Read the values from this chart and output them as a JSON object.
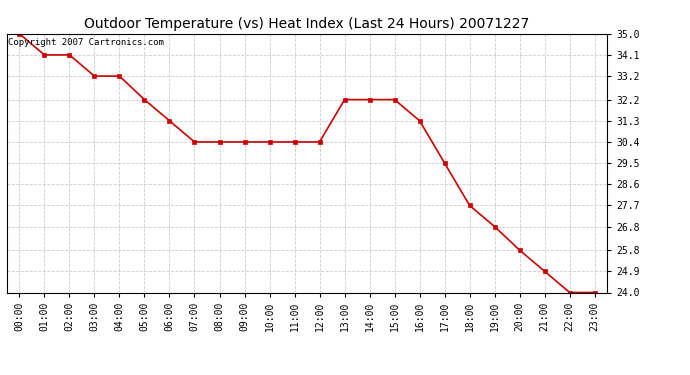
{
  "title": "Outdoor Temperature (vs) Heat Index (Last 24 Hours) 20071227",
  "copyright_text": "Copyright 2007 Cartronics.com",
  "x_labels": [
    "00:00",
    "01:00",
    "02:00",
    "03:00",
    "04:00",
    "05:00",
    "06:00",
    "07:00",
    "08:00",
    "09:00",
    "10:00",
    "11:00",
    "12:00",
    "13:00",
    "14:00",
    "15:00",
    "16:00",
    "17:00",
    "18:00",
    "19:00",
    "20:00",
    "21:00",
    "22:00",
    "23:00"
  ],
  "y_values": [
    35.0,
    34.1,
    34.1,
    33.2,
    33.2,
    32.2,
    31.3,
    30.4,
    30.4,
    30.4,
    30.4,
    30.4,
    30.4,
    32.2,
    32.2,
    32.2,
    31.3,
    29.5,
    27.7,
    26.8,
    25.8,
    24.9,
    24.0,
    24.0
  ],
  "line_color": "#cc0000",
  "marker": "s",
  "marker_size": 2.5,
  "marker_color": "#cc0000",
  "ylim_min": 24.0,
  "ylim_max": 35.0,
  "yticks": [
    35.0,
    34.1,
    33.2,
    32.2,
    31.3,
    30.4,
    29.5,
    28.6,
    27.7,
    26.8,
    25.8,
    24.9,
    24.0
  ],
  "grid_color": "#cccccc",
  "grid_style": "--",
  "background_color": "#ffffff",
  "title_fontsize": 10,
  "tick_fontsize": 7,
  "copyright_fontsize": 6.5
}
